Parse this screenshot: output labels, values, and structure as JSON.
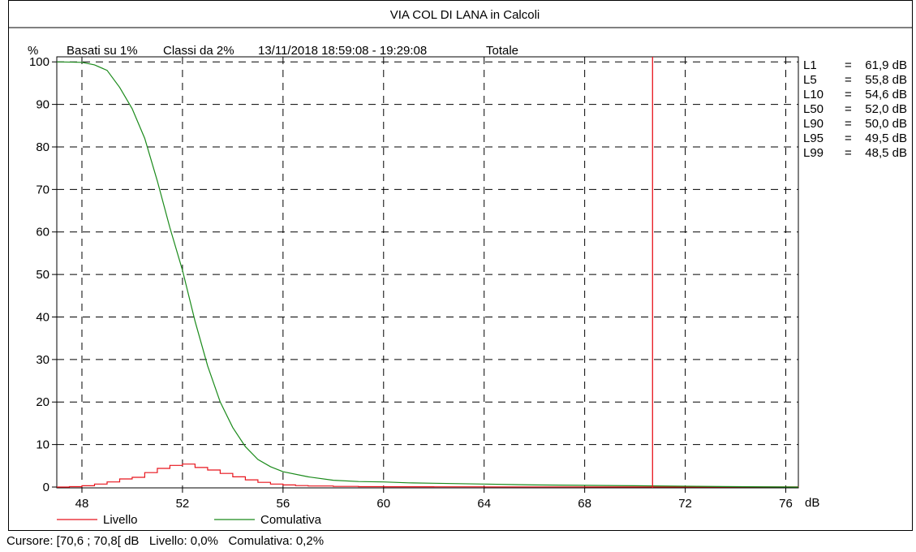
{
  "chart_data": {
    "type": "line",
    "title": "VIA COL DI LANA in Calcoli",
    "subtitle": {
      "basis": "Basati su 1%",
      "classes": "Classi da 2%",
      "period": "13/11/2018 18:59:08 - 19:29:08",
      "scope": "Totale"
    },
    "ylabel": "%",
    "xlabel": "dB",
    "xlim": [
      47,
      76.5
    ],
    "ylim": [
      0,
      101
    ],
    "x_ticks": [
      48,
      52,
      56,
      60,
      64,
      68,
      72,
      76
    ],
    "y_ticks": [
      0,
      10,
      20,
      30,
      40,
      50,
      60,
      70,
      80,
      90,
      100
    ],
    "grid": true,
    "cursor_x": 70.7,
    "series": [
      {
        "name": "Livello",
        "color": "#e8141c",
        "step": true,
        "x": [
          47.0,
          47.5,
          48.0,
          48.5,
          49.0,
          49.5,
          50.0,
          50.5,
          51.0,
          51.5,
          52.0,
          52.5,
          53.0,
          53.5,
          54.0,
          54.5,
          55.0,
          55.5,
          56.0,
          56.5,
          57.0,
          58.0,
          59.0,
          60.0,
          62.0,
          64.0,
          68.0,
          72.0,
          76.5
        ],
        "values": [
          0.0,
          0.1,
          0.3,
          0.7,
          1.2,
          1.9,
          2.3,
          3.4,
          4.4,
          5.1,
          5.4,
          4.6,
          4.0,
          3.2,
          2.4,
          1.7,
          1.1,
          0.7,
          0.5,
          0.35,
          0.25,
          0.15,
          0.1,
          0.08,
          0.05,
          0.03,
          0.02,
          0.01,
          0.0
        ]
      },
      {
        "name": "Comulativa",
        "color": "#1a8a1a",
        "step": false,
        "x": [
          47.0,
          48.0,
          48.5,
          49.0,
          49.5,
          50.0,
          50.5,
          51.0,
          51.5,
          52.0,
          52.5,
          53.0,
          53.5,
          54.0,
          54.5,
          55.0,
          55.5,
          56.0,
          57.0,
          58.0,
          59.0,
          60.0,
          61.0,
          62.0,
          64.0,
          66.0,
          68.0,
          70.0,
          72.0,
          74.0,
          76.5
        ],
        "values": [
          100.0,
          99.9,
          99.3,
          98.0,
          94.0,
          89.0,
          82.0,
          72.0,
          61.0,
          51.0,
          39.0,
          28.5,
          20.0,
          14.0,
          9.5,
          6.5,
          4.8,
          3.6,
          2.4,
          1.6,
          1.3,
          1.2,
          1.0,
          0.9,
          0.7,
          0.5,
          0.4,
          0.3,
          0.2,
          0.1,
          0.0
        ]
      }
    ],
    "ln_values": [
      {
        "label": "L1",
        "eq": "=",
        "value": "61,9 dB"
      },
      {
        "label": "L5",
        "eq": "=",
        "value": "55,8 dB"
      },
      {
        "label": "L10",
        "eq": "=",
        "value": "54,6 dB"
      },
      {
        "label": "L50",
        "eq": "=",
        "value": "52,0 dB"
      },
      {
        "label": "L90",
        "eq": "=",
        "value": "50,0 dB"
      },
      {
        "label": "L95",
        "eq": "=",
        "value": "49,5 dB"
      },
      {
        "label": "L99",
        "eq": "=",
        "value": "48,5 dB"
      }
    ]
  },
  "status_bar": {
    "text": "Cursore: [70,6 ; 70,8[ dB   Livello: 0,0%   Comulativa: 0,2%"
  }
}
